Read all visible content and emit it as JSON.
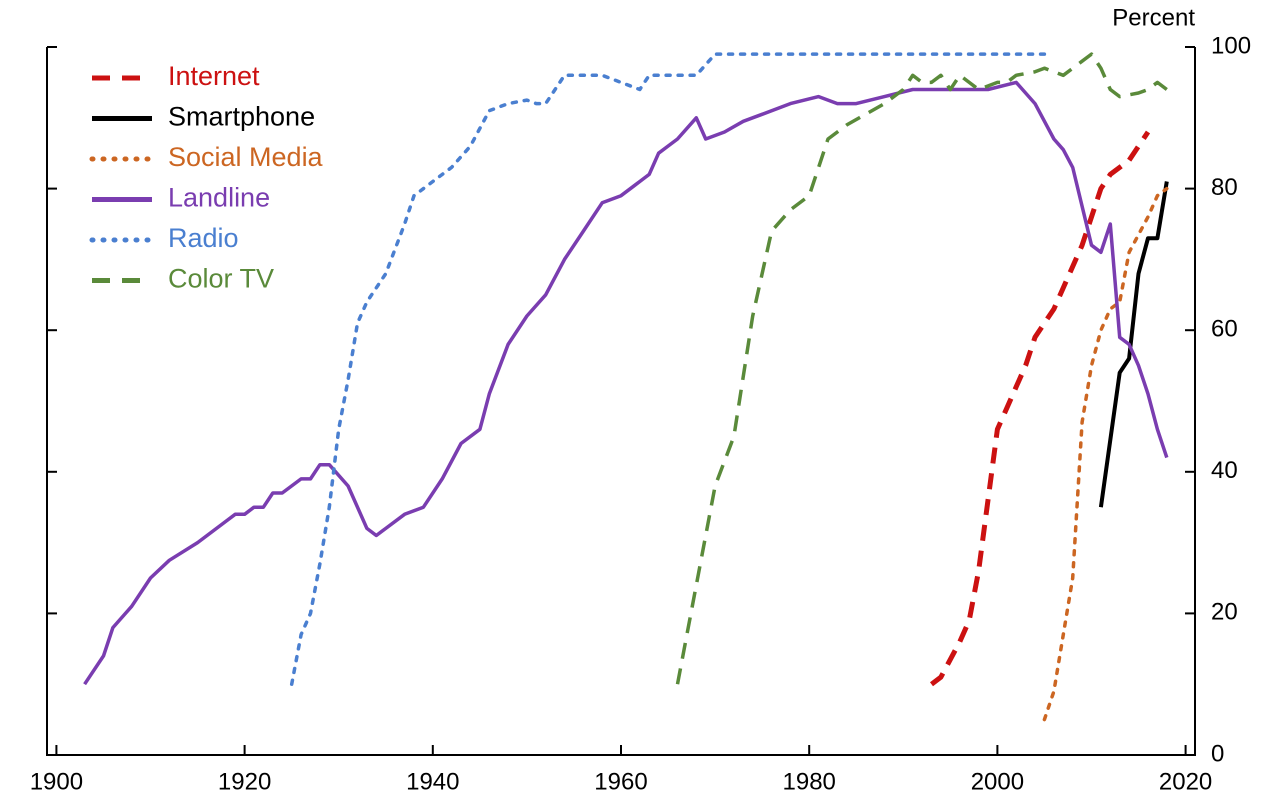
{
  "chart_data": {
    "type": "line",
    "ylabel": "Percent",
    "xlim": [
      1899,
      2021
    ],
    "xticks": [
      1900,
      1920,
      1940,
      1960,
      1980,
      2000,
      2020
    ],
    "ylim": [
      0,
      100
    ],
    "yticks": [
      0,
      20,
      40,
      60,
      80,
      100
    ],
    "legend": "upper left",
    "series": [
      {
        "name": "Internet",
        "color": "#cc1111",
        "linestyle": "dashed",
        "x": [
          1993,
          1994,
          1996,
          1997,
          1998,
          1999,
          2000,
          2001,
          2002,
          2003,
          2004,
          2005,
          2006,
          2007,
          2008,
          2009,
          2010,
          2011,
          2012,
          2014,
          2016
        ],
        "values": [
          10,
          11,
          16,
          19,
          26,
          36,
          46,
          49,
          52,
          55,
          59,
          61,
          63,
          66,
          69,
          72,
          76,
          80,
          82,
          84,
          88
        ]
      },
      {
        "name": "Smartphone",
        "color": "#000000",
        "linestyle": "solid",
        "x": [
          2011,
          2013,
          2014,
          2015,
          2016,
          2017,
          2018
        ],
        "values": [
          35,
          54,
          56,
          68,
          73,
          73,
          81
        ]
      },
      {
        "name": "Social Media",
        "color": "#cc6622",
        "linestyle": "dotted",
        "x": [
          2005,
          2006,
          2007,
          2008,
          2009,
          2010,
          2011,
          2012,
          2013,
          2014,
          2016,
          2017,
          2018
        ],
        "values": [
          5,
          9,
          17,
          25,
          47,
          55,
          60,
          63,
          64,
          71,
          76,
          79,
          80
        ]
      },
      {
        "name": "Landline",
        "color": "#7a3db0",
        "linestyle": "solid",
        "x": [
          1903,
          1905,
          1906,
          1908,
          1910,
          1912,
          1915,
          1918,
          1919,
          1920,
          1921,
          1922,
          1923,
          1924,
          1926,
          1927,
          1928,
          1929,
          1931,
          1933,
          1934,
          1935,
          1937,
          1939,
          1941,
          1943,
          1945,
          1946,
          1948,
          1950,
          1952,
          1954,
          1956,
          1958,
          1960,
          1962,
          1963,
          1964,
          1965,
          1966,
          1968,
          1969,
          1971,
          1973,
          1975,
          1978,
          1981,
          1983,
          1985,
          1988,
          1991,
          1995,
          1999,
          2002,
          2004,
          2006,
          2007,
          2008,
          2010,
          2011,
          2012,
          2013,
          2014,
          2015,
          2016,
          2017,
          2018
        ],
        "values": [
          10,
          14,
          18,
          21,
          25,
          27.5,
          30,
          33,
          34,
          34,
          35,
          35,
          37,
          37,
          39,
          39,
          41,
          41,
          38,
          32,
          31,
          32,
          34,
          35,
          39,
          44,
          46,
          51,
          58,
          62,
          65,
          70,
          74,
          78,
          79,
          81,
          82,
          85,
          86,
          87,
          90,
          87,
          88,
          89.5,
          90.5,
          92,
          93,
          92,
          92,
          93,
          94,
          94,
          94,
          95,
          92,
          87,
          85.5,
          83,
          72,
          71,
          75,
          59,
          58,
          55,
          51,
          46,
          42
        ]
      },
      {
        "name": "Radio",
        "color": "#4a7fd0",
        "linestyle": "dotted",
        "x": [
          1925,
          1926,
          1927,
          1928,
          1929,
          1930,
          1931,
          1932,
          1933,
          1935,
          1937,
          1938,
          1940,
          1942,
          1944,
          1946,
          1948,
          1950,
          1951,
          1952,
          1954,
          1958,
          1960,
          1962,
          1963,
          1968,
          1970,
          2005
        ],
        "values": [
          10,
          17,
          20,
          27,
          35,
          46,
          53,
          61,
          64,
          68,
          75,
          79,
          81,
          83,
          86,
          91,
          92,
          92.5,
          92,
          92,
          96,
          96,
          95,
          94,
          96,
          96,
          99,
          99
        ]
      },
      {
        "name": "Color TV",
        "color": "#5a8a3a",
        "linestyle": "dashed",
        "x": [
          1966,
          1968,
          1970,
          1972,
          1974,
          1976,
          1978,
          1980,
          1982,
          1984,
          1988,
          1990,
          1991,
          1992,
          1993,
          1994,
          1995,
          1996,
          1997,
          1998,
          2000,
          2001,
          2002,
          2004,
          2005,
          2007,
          2009,
          2010,
          2011,
          2012,
          2013,
          2015,
          2016,
          2017,
          2018
        ],
        "values": [
          10,
          24,
          38,
          45,
          62,
          74,
          77,
          79,
          87,
          89,
          92,
          94,
          96,
          95,
          95,
          96,
          94,
          96,
          95,
          94,
          95,
          95,
          96,
          96.5,
          97,
          96,
          98,
          99,
          97,
          94,
          93,
          93.5,
          94,
          95,
          94
        ]
      }
    ]
  }
}
